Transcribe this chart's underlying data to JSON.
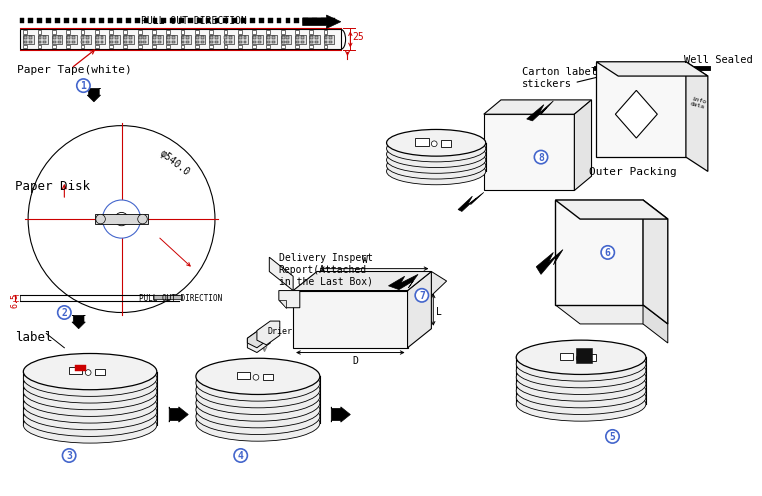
{
  "bg_color": "#FFFFFF",
  "line_color": "#000000",
  "red_color": "#CC0000",
  "blue_color": "#4466CC",
  "fig_w": 7.5,
  "fig_h": 5.0,
  "dpi": 100,
  "labels": {
    "pull_out_dir": "PULL OUT DIRECTION",
    "paper_tape": "Paper Tape(white)",
    "paper_disk": "Paper Disk",
    "diameter": "φ540.0",
    "pull_out2": "PULL OUT DIRECTION",
    "h65": "6.5",
    "dim25": "25",
    "label_txt": "label",
    "delivery": "Delivery Inspect\nReport(Attached\nin the Last Box)",
    "drier": "Drier",
    "W": "W",
    "D": "D",
    "L": "L",
    "outer_packing": "Outer Packing",
    "carton_label": "Carton label\nstickers",
    "well_sealed": "Well Sealed"
  }
}
